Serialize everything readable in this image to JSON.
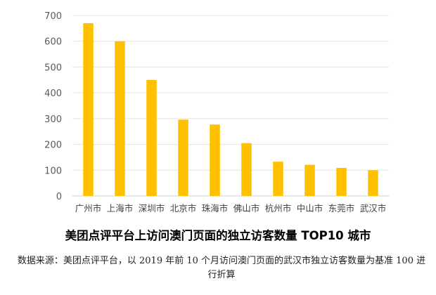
{
  "chart_data": {
    "type": "bar",
    "title": "美团点评平台上访问澳门页面的独立访客数量 TOP10 城市",
    "categories": [
      "广州市",
      "上海市",
      "深圳市",
      "北京市",
      "珠海市",
      "佛山市",
      "杭州市",
      "中山市",
      "东莞市",
      "武汉市"
    ],
    "values": [
      670,
      600,
      450,
      296,
      277,
      205,
      133,
      121,
      109,
      100
    ],
    "ylim": [
      0,
      700
    ],
    "yticks": [
      0,
      100,
      200,
      300,
      400,
      500,
      600,
      700
    ],
    "xlabel": "",
    "ylabel": "",
    "grid": true,
    "legend": "none",
    "bar_color": "#FFC000",
    "source_note": "数据来源：美团点评平台，以 2019 年前 10 个月访问澳门页面的武汉市独立访客数量为基准 100 进行折算"
  }
}
